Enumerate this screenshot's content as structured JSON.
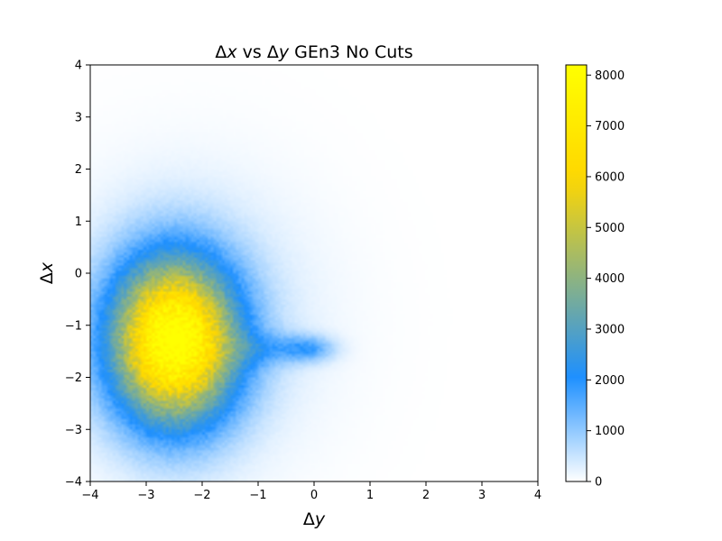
{
  "chart_data": {
    "type": "heatmap",
    "title": "Δx vs Δy GEn3 No Cuts",
    "title_parts": {
      "sym1": "Δ",
      "var1": "x",
      "mid": " vs ",
      "sym2": "Δ",
      "var2": "y",
      "rest": " GEn3 No Cuts"
    },
    "xlabel": "Δy",
    "xlabel_parts": {
      "sym": "Δ",
      "var": "y"
    },
    "ylabel": "Δx",
    "ylabel_parts": {
      "sym": "Δ",
      "var": "x"
    },
    "xlim": [
      -4,
      4
    ],
    "ylim": [
      -4,
      4
    ],
    "x_ticks": [
      -4,
      -3,
      -2,
      -1,
      0,
      1,
      2,
      3,
      4
    ],
    "x_tick_labels": [
      "−4",
      "−3",
      "−2",
      "−1",
      "0",
      "1",
      "2",
      "3",
      "4"
    ],
    "y_ticks": [
      -4,
      -3,
      -2,
      -1,
      0,
      1,
      2,
      3,
      4
    ],
    "y_tick_labels": [
      "−4",
      "−3",
      "−2",
      "−1",
      "0",
      "1",
      "2",
      "3",
      "4"
    ],
    "grid": false,
    "colorbar": {
      "range": [
        0,
        8200
      ],
      "ticks": [
        0,
        1000,
        2000,
        3000,
        4000,
        5000,
        6000,
        7000,
        8000
      ],
      "tick_labels": [
        "0",
        "1000",
        "2000",
        "3000",
        "4000",
        "5000",
        "6000",
        "7000",
        "8000"
      ],
      "colormap": [
        "#ffffff",
        "#1e90ff",
        "#ffd700",
        "#ffff00"
      ]
    },
    "density_peak": {
      "x": -2.5,
      "y": -1.3,
      "value": 8200
    }
  }
}
